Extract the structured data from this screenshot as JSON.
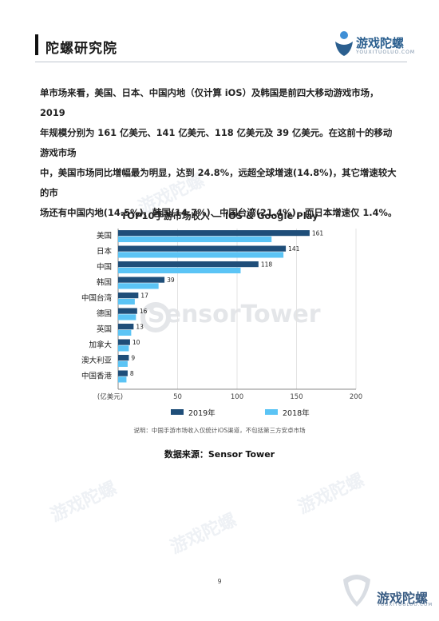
{
  "header": {
    "title": "陀螺研究院",
    "brand_name": "游戏陀螺",
    "brand_sub": "YOUXITUOLUO.COM"
  },
  "paragraph": {
    "lines": [
      "单市场来看，美国、日本、中国内地（仅计算 iOS）及韩国是前四大移动游戏市场，2019",
      "年规模分别为 161 亿美元、141 亿美元、118 亿美元及 39 亿美元。在这前十的移动游戏市场",
      "中，美国市场同比增幅最为明显，达到 24.8%，远超全球增速(14.8%)，其它增速较大的市",
      "场还有中国内地(14.5%)、韩国(14.7%)、中国台湾(21.4%)，而日本增速仅 1.4%。"
    ]
  },
  "chart_data": {
    "type": "bar",
    "orientation": "horizontal",
    "title": "TOP10手游市场收入 — iOS & Google Play",
    "categories": [
      "美国",
      "日本",
      "中国",
      "韩国",
      "中国台湾",
      "德国",
      "英国",
      "加拿大",
      "澳大利亚",
      "中国香港"
    ],
    "series": [
      {
        "name": "2019年",
        "values": [
          161,
          141,
          118,
          39,
          17,
          16,
          13,
          10,
          9,
          8
        ],
        "color": "#1f4e79",
        "labeled": true
      },
      {
        "name": "2018年",
        "values": [
          129,
          139,
          103,
          34,
          14,
          15,
          11,
          9,
          8,
          7
        ],
        "color": "#5bc4f5",
        "labeled": false
      }
    ],
    "x_unit_label": "(亿美元)",
    "xticks": [
      0,
      50,
      100,
      150,
      200
    ],
    "xlim": [
      0,
      200
    ],
    "grid": true,
    "legend_position": "bottom"
  },
  "chart_note": "说明：中国手游市场收入仅统计iOS渠道，不包括第三方安卓市场",
  "source": "数据来源：Sensor Tower",
  "watermark": {
    "sensor": "SensorTower",
    "game": "游戏陀螺"
  },
  "page_number": "9",
  "footer": {
    "brand_name": "游戏陀螺",
    "brand_sub": "YOUXITUOLUO.COM"
  }
}
